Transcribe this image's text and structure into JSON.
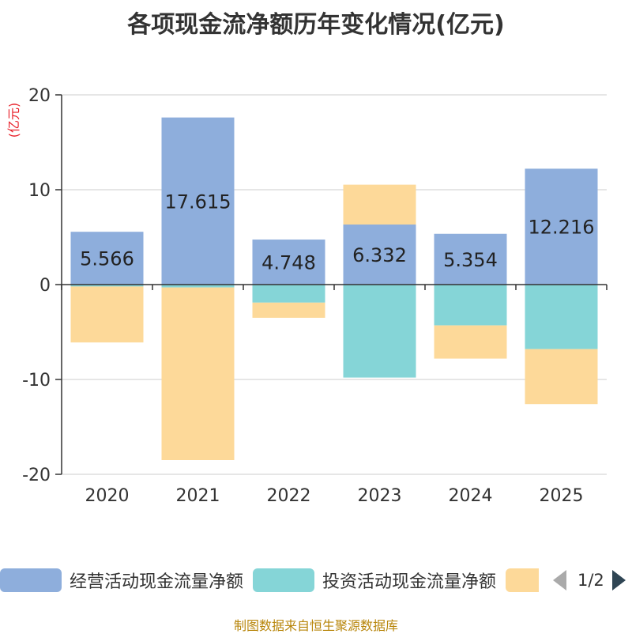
{
  "title": "各项现金流净额历年变化情况(亿元)",
  "unit_label": "(亿元)",
  "footer": "制图数据来自恒生聚源数据库",
  "pager": {
    "text": "1/2"
  },
  "colors": {
    "operating": "#8eaedc",
    "investing": "#85d5d7",
    "financing": "#fdd999",
    "axis": "#333333",
    "grid": "#cccccc",
    "tick_text": "#333333"
  },
  "chart_data": {
    "type": "bar",
    "stacked": true,
    "title": "各项现金流净额历年变化情况(亿元)",
    "ylabel": "(亿元)",
    "ylim": [
      -20,
      20
    ],
    "yticks": [
      20,
      10,
      0,
      -10,
      -20
    ],
    "categories": [
      "2020",
      "2021",
      "2022",
      "2023",
      "2024",
      "2025"
    ],
    "series": [
      {
        "name": "经营活动现金流量净额",
        "key": "operating",
        "values": [
          5.566,
          17.615,
          4.748,
          6.332,
          5.354,
          12.216
        ],
        "labels": [
          "5.566",
          "17.615",
          "4.748",
          "6.332",
          "5.354",
          "12.216"
        ]
      },
      {
        "name": "投资活动现金流量净额",
        "key": "investing",
        "values": [
          -0.2,
          -0.3,
          -1.9,
          -9.8,
          -4.3,
          -6.8
        ]
      },
      {
        "name": "",
        "key": "financing",
        "values": [
          -5.9,
          -18.2,
          -1.6,
          4.2,
          -3.5,
          -5.8
        ]
      }
    ]
  }
}
